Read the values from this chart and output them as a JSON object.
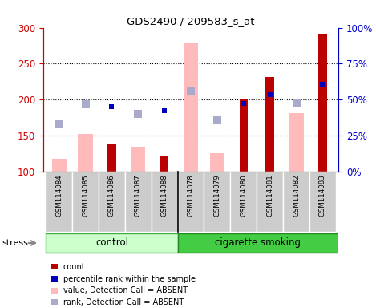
{
  "title": "GDS2490 / 209583_s_at",
  "samples": [
    "GSM114084",
    "GSM114085",
    "GSM114086",
    "GSM114087",
    "GSM114088",
    "GSM114078",
    "GSM114079",
    "GSM114080",
    "GSM114081",
    "GSM114082",
    "GSM114083"
  ],
  "red_bars": [
    null,
    null,
    138,
    null,
    121,
    null,
    null,
    202,
    232,
    null,
    291
  ],
  "pink_bars": [
    118,
    153,
    null,
    135,
    null,
    278,
    126,
    null,
    null,
    182,
    null
  ],
  "blue_squares": [
    null,
    null,
    190,
    null,
    185,
    null,
    null,
    195,
    207,
    null,
    222
  ],
  "light_blue_squares": [
    167,
    194,
    null,
    180,
    null,
    212,
    172,
    null,
    null,
    196,
    null
  ],
  "ylim_left": [
    100,
    300
  ],
  "ylim_right": [
    0,
    100
  ],
  "yticks_left": [
    100,
    150,
    200,
    250,
    300
  ],
  "yticks_right": [
    0,
    25,
    50,
    75,
    100
  ],
  "ytick_labels_right": [
    "0%",
    "25%",
    "50%",
    "75%",
    "100%"
  ],
  "colors": {
    "red_bar": "#bb0000",
    "pink_bar": "#ffbbbb",
    "blue_square": "#0000bb",
    "light_blue_square": "#aaaacc",
    "control_bg": "#ccffcc",
    "cigarette_bg": "#44cc44",
    "sample_bg": "#cccccc",
    "left_axis": "#cc0000",
    "right_axis": "#0000cc"
  },
  "legend_items": [
    {
      "label": "count",
      "color": "#bb0000"
    },
    {
      "label": "percentile rank within the sample",
      "color": "#0000bb"
    },
    {
      "label": "value, Detection Call = ABSENT",
      "color": "#ffbbbb"
    },
    {
      "label": "rank, Detection Call = ABSENT",
      "color": "#aaaacc"
    }
  ],
  "control_count": 5,
  "total_count": 11
}
